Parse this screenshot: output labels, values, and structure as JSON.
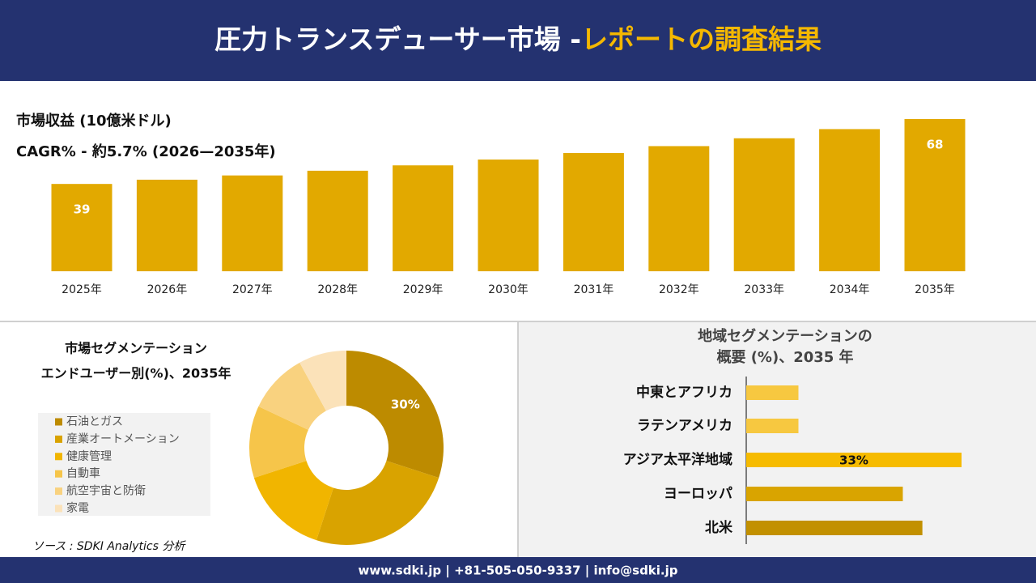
{
  "header": {
    "title": "圧力トランスデューサー市場 -",
    "title_highlight": "レポートの調査結果"
  },
  "chart_data": [
    {
      "type": "bar",
      "title": "市場収益 (10億米ドル)",
      "subtitle": "CAGR% - 約5.7% (2026—2035年)",
      "categories": [
        "2025年",
        "2026年",
        "2027年",
        "2028年",
        "2029年",
        "2030年",
        "2031年",
        "2032年",
        "2033年",
        "2034年",
        "2035年"
      ],
      "values": [
        39,
        40.9,
        42.8,
        44.9,
        47.3,
        49.9,
        52.8,
        55.9,
        59.4,
        63.5,
        68
      ],
      "color": "#e2a900"
    },
    {
      "type": "pie",
      "title": "市場セグメンテーション",
      "subtitle": "エンドユーザー別(%)、2035年",
      "categories": [
        "石油とガス",
        "産業オートメーション",
        "健康管理",
        "自動車",
        "航空宇宙と防衛",
        "家電"
      ],
      "values": [
        30,
        25,
        15,
        12,
        10,
        8
      ],
      "value_labels": [
        "30%",
        null,
        null,
        null,
        null,
        null
      ],
      "colors": [
        "#bd8b00",
        "#d9a300",
        "#f1b500",
        "#f6c54a",
        "#f9d27f",
        "#fbe2b9"
      ]
    },
    {
      "type": "hbar",
      "title": "地域セグメンテーションの",
      "subtitle": "概要 (%)、2035 年",
      "categories": [
        "中東とアフリカ",
        "ラテンアメリカ",
        "アジア太平洋地域",
        "ヨーロッパ",
        "北米"
      ],
      "values": [
        8,
        8,
        33,
        24,
        27
      ],
      "value_labels": [
        null,
        null,
        "33%",
        null,
        null
      ],
      "colors": [
        "#f7c840",
        "#f7c840",
        "#f6bb00",
        "#d9a400",
        "#c29000"
      ]
    }
  ],
  "source": "ソース : SDKI Analytics 分析",
  "footer": {
    "contact": "www.sdki.jp | +81-505-050-9337 | info@sdki.jp"
  }
}
